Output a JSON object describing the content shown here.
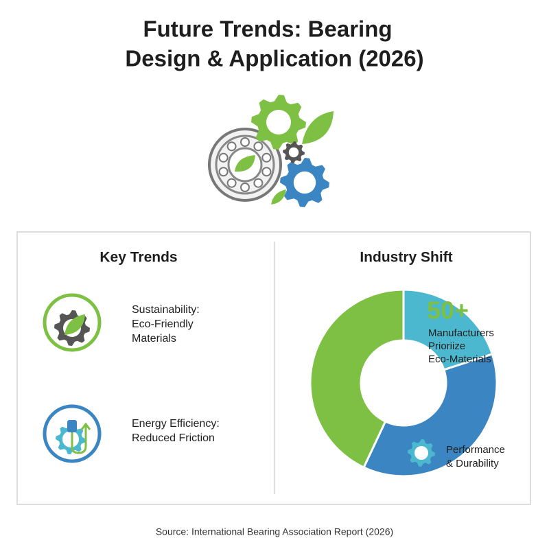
{
  "header": {
    "title_lines": [
      "Future Trends: Bearing",
      "Design & Application (2026)"
    ]
  },
  "key_trends": {
    "title": "Key Trends",
    "items": [
      {
        "lines": [
          "Sustainability:",
          "Eco-Friendly",
          "Materials"
        ]
      },
      {
        "lines": [
          "Energy Efficiency:",
          "Reduced Friction"
        ]
      }
    ]
  },
  "industry_shift": {
    "title": "Industry Shift",
    "chart_data": {
      "type": "donut",
      "segments": [
        {
          "value": 20,
          "color": "#4bb8cf",
          "highlight": "50+",
          "lines": [
            "Manufacturers",
            "Prioriize",
            "Eco-Materials"
          ]
        },
        {
          "value": 37,
          "color": "#3a85c2",
          "lines": [
            "Performance",
            "& Durability"
          ]
        },
        {
          "value": 43,
          "color": "#7ec043"
        }
      ]
    }
  },
  "source": "Source: International Bearing Association Report (2026)"
}
